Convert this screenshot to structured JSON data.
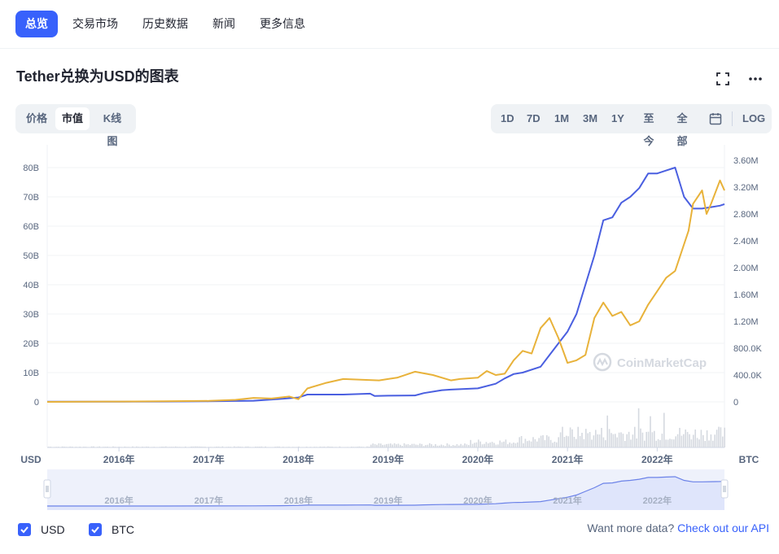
{
  "nav": {
    "items": [
      {
        "label": "总览",
        "active": true
      },
      {
        "label": "交易市场",
        "active": false
      },
      {
        "label": "历史数据",
        "active": false
      },
      {
        "label": "新闻",
        "active": false
      },
      {
        "label": "更多信息",
        "active": false
      }
    ]
  },
  "chart_title": "Tether兑换为USD的图表",
  "icons": {
    "fullscreen": "fullscreen-icon",
    "more": "more-icon",
    "calendar": "calendar-icon"
  },
  "view_tabs": [
    {
      "label": "价格",
      "active": false
    },
    {
      "label": "市值",
      "active": true
    },
    {
      "label": "K线图",
      "active": false
    }
  ],
  "range_tabs": [
    "1D",
    "7D",
    "1M",
    "3M",
    "1Y",
    "至今",
    "全部"
  ],
  "log_label": "LOG",
  "axis_unit_left": "USD",
  "axis_unit_right": "BTC",
  "watermark": "CoinMarketCap",
  "legend": [
    {
      "label": "USD",
      "checked": true,
      "color": "#3861fb"
    },
    {
      "label": "BTC",
      "checked": true,
      "color": "#f0b90b"
    }
  ],
  "api": {
    "text": "Want more data?",
    "link": "Check out our API"
  },
  "colors": {
    "accent": "#3861fb",
    "usd_line": "#4a5fe0",
    "btc_line": "#e8b23a"
  },
  "chart_data": {
    "type": "line",
    "xticks": [
      "2016年",
      "2017年",
      "2018年",
      "2019年",
      "2020年",
      "2021年",
      "2022年"
    ],
    "navigator_xticks": [
      "2016年",
      "2017年",
      "2018年",
      "2019年",
      "2020年",
      "2021年",
      "2022年"
    ],
    "yticks_left": [
      "0",
      "10B",
      "20B",
      "30B",
      "40B",
      "50B",
      "60B",
      "70B",
      "80B"
    ],
    "yticks_right": [
      "0",
      "400.0K",
      "800.0K",
      "1.20M",
      "1.60M",
      "2.00M",
      "2.40M",
      "2.80M",
      "3.20M",
      "3.60M"
    ],
    "ylim_left": [
      0,
      80
    ],
    "ylim_right": [
      0,
      3.6
    ],
    "series": [
      {
        "name": "USD",
        "axis": "left",
        "x": [
          2015.2,
          2016.0,
          2016.5,
          2017.0,
          2017.5,
          2017.8,
          2018.0,
          2018.1,
          2018.5,
          2018.8,
          2018.85,
          2019.0,
          2019.3,
          2019.4,
          2019.6,
          2019.7,
          2020.0,
          2020.2,
          2020.3,
          2020.4,
          2020.5,
          2020.7,
          2020.8,
          2020.9,
          2021.0,
          2021.1,
          2021.2,
          2021.3,
          2021.4,
          2021.5,
          2021.6,
          2021.7,
          2021.8,
          2021.9,
          2022.0,
          2022.1,
          2022.2,
          2022.3,
          2022.4,
          2022.5,
          2022.6,
          2022.7,
          2022.75
        ],
        "y": [
          0.05,
          0.05,
          0.1,
          0.2,
          0.4,
          1.0,
          1.5,
          2.5,
          2.5,
          2.8,
          2.0,
          2.1,
          2.2,
          3.0,
          4.0,
          4.2,
          4.6,
          6.2,
          8.0,
          9.5,
          10.0,
          12.0,
          16.0,
          20.0,
          24.0,
          30.0,
          40.0,
          50.0,
          62.0,
          63.0,
          68.0,
          70.0,
          73.0,
          78.0,
          78.0,
          79.0,
          80.0,
          70.0,
          66.0,
          66.0,
          66.5,
          67.0,
          67.5
        ]
      },
      {
        "name": "BTC",
        "axis": "right",
        "x": [
          2015.2,
          2016.0,
          2016.5,
          2017.0,
          2017.3,
          2017.5,
          2017.7,
          2017.9,
          2018.0,
          2018.1,
          2018.3,
          2018.5,
          2018.7,
          2018.9,
          2019.0,
          2019.1,
          2019.3,
          2019.5,
          2019.7,
          2019.8,
          2020.0,
          2020.1,
          2020.2,
          2020.3,
          2020.4,
          2020.5,
          2020.6,
          2020.7,
          2020.8,
          2020.9,
          2021.0,
          2021.1,
          2021.2,
          2021.3,
          2021.4,
          2021.5,
          2021.6,
          2021.7,
          2021.8,
          2021.9,
          2022.0,
          2022.1,
          2022.2,
          2022.3,
          2022.35,
          2022.4,
          2022.5,
          2022.55,
          2022.6,
          2022.7,
          2022.75
        ],
        "y": [
          0.0,
          0.005,
          0.01,
          0.015,
          0.03,
          0.06,
          0.05,
          0.08,
          0.04,
          0.2,
          0.28,
          0.34,
          0.33,
          0.32,
          0.34,
          0.36,
          0.45,
          0.4,
          0.32,
          0.34,
          0.36,
          0.46,
          0.4,
          0.42,
          0.62,
          0.76,
          0.72,
          1.1,
          1.25,
          0.95,
          0.58,
          0.62,
          0.7,
          1.25,
          1.48,
          1.28,
          1.34,
          1.14,
          1.2,
          1.45,
          1.65,
          1.85,
          1.95,
          2.35,
          2.55,
          2.95,
          3.15,
          2.8,
          2.95,
          3.3,
          3.15
        ]
      }
    ]
  }
}
